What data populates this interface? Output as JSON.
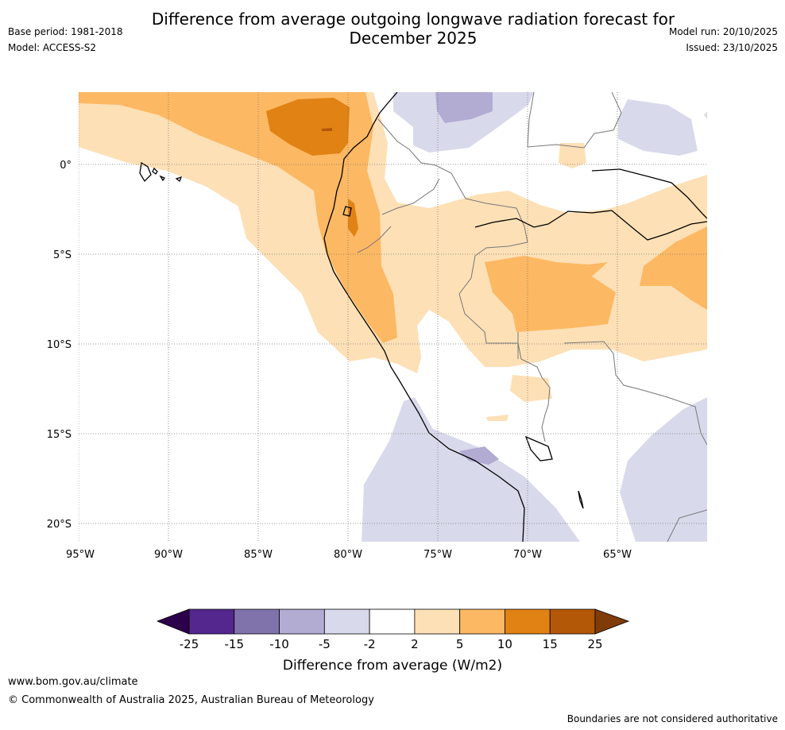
{
  "title": {
    "line1": "Difference from average outgoing longwave radiation forecast for",
    "line2": "December 2025"
  },
  "meta_left": {
    "base_period": "Base period: 1981-2018",
    "model": "Model: ACCESS-S2"
  },
  "meta_right": {
    "model_run": "Model run: 20/10/2025",
    "issued": "Issued: 23/10/2025"
  },
  "map": {
    "lat_labels": [
      "0°",
      "5°S",
      "10°S",
      "15°S",
      "20°S"
    ],
    "lon_labels": [
      "95°W",
      "90°W",
      "85°W",
      "80°W",
      "75°W",
      "70°W",
      "65°W"
    ],
    "lat_values": [
      0,
      -5,
      -10,
      -15,
      -20
    ],
    "lon_values": [
      -95,
      -90,
      -85,
      -80,
      -75,
      -70,
      -65
    ],
    "extent": {
      "lon_min": -95,
      "lon_max": -60,
      "lat_min": -21,
      "lat_max": 4
    }
  },
  "colorbar": {
    "ticks": [
      "-25",
      "-15",
      "-10",
      "-5",
      "-2",
      "2",
      "5",
      "10",
      "15",
      "25"
    ],
    "colors": [
      "#54278f",
      "#8073ac",
      "#b2abd2",
      "#d8daeb",
      "#ffffff",
      "#fee0b6",
      "#fdb863",
      "#e08214",
      "#b35806"
    ],
    "under_color": "#2d004b",
    "over_color": "#7f3b08",
    "label": "Difference from average (W/m2)"
  },
  "footer": {
    "url": "www.bom.gov.au/climate",
    "copyright": "© Commonwealth of Australia 2025, Australian Bureau of Meteorology",
    "note": "Boundaries are not considered authoritative"
  }
}
